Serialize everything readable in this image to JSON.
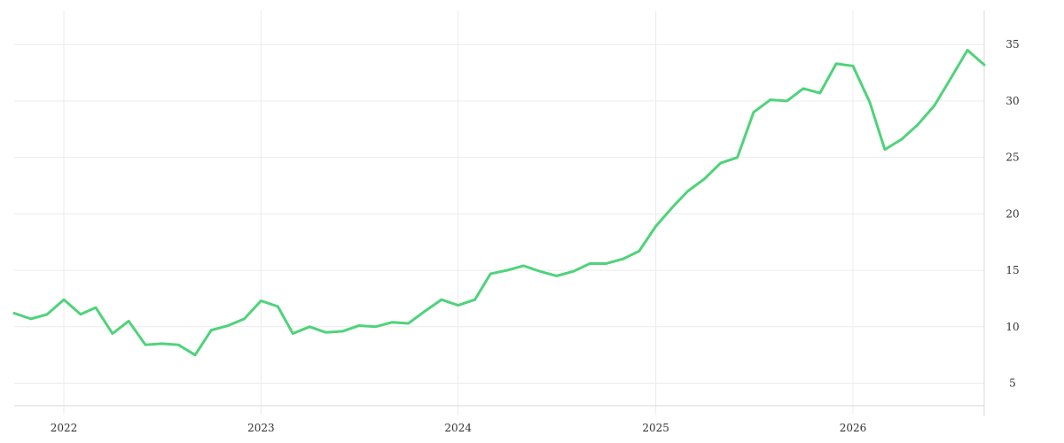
{
  "chart_data": {
    "type": "line",
    "title": "",
    "xlabel": "",
    "ylabel": "",
    "grid": true,
    "legend": "none",
    "y_axis_side": "right",
    "xlim": [
      "2021-10-01",
      "2026-09-01"
    ],
    "ylim": [
      3,
      38
    ],
    "x_ticks": [
      {
        "date": "2022-01-01",
        "label": "2022"
      },
      {
        "date": "2023-01-01",
        "label": "2023"
      },
      {
        "date": "2024-01-01",
        "label": "2024"
      },
      {
        "date": "2025-01-01",
        "label": "2025"
      },
      {
        "date": "2026-01-01",
        "label": "2026"
      }
    ],
    "y_ticks": [
      5,
      10,
      15,
      20,
      25,
      30,
      35
    ],
    "colors": {
      "line": "#4fd37a",
      "grid": "#ececec",
      "axis": "#d9d9d9",
      "text": "#333333"
    },
    "series": [
      {
        "x": [
          "2021-10-01",
          "2021-11-01",
          "2021-12-01",
          "2022-01-01",
          "2022-02-01",
          "2022-03-01",
          "2022-04-01",
          "2022-05-01",
          "2022-06-01",
          "2022-07-01",
          "2022-08-01",
          "2022-09-01",
          "2022-10-01",
          "2022-11-01",
          "2022-12-01",
          "2023-01-01",
          "2023-02-01",
          "2023-03-01",
          "2023-04-01",
          "2023-05-01",
          "2023-06-01",
          "2023-07-01",
          "2023-08-01",
          "2023-09-01",
          "2023-10-01",
          "2023-11-01",
          "2023-12-01",
          "2024-01-01",
          "2024-02-01",
          "2024-03-01",
          "2024-04-01",
          "2024-05-01",
          "2024-06-01",
          "2024-07-01",
          "2024-08-01",
          "2024-09-01",
          "2024-10-01",
          "2024-11-01",
          "2024-12-01",
          "2025-01-01",
          "2025-02-01",
          "2025-03-01",
          "2025-04-01",
          "2025-05-01",
          "2025-06-01",
          "2025-07-01",
          "2025-08-01",
          "2025-09-01",
          "2025-10-01",
          "2025-11-01",
          "2025-12-01",
          "2026-01-01",
          "2026-02-01",
          "2026-03-01",
          "2026-04-01",
          "2026-05-01",
          "2026-06-01",
          "2026-07-01",
          "2026-08-01",
          "2026-09-01"
        ],
        "values": [
          11.2,
          10.7,
          11.1,
          12.4,
          11.1,
          11.7,
          9.4,
          10.5,
          8.4,
          8.5,
          8.4,
          7.5,
          9.7,
          10.1,
          10.7,
          12.3,
          11.8,
          9.4,
          10.0,
          9.5,
          9.6,
          10.1,
          10.0,
          10.4,
          10.3,
          11.4,
          12.4,
          11.9,
          12.4,
          14.7,
          15.0,
          15.4,
          14.9,
          14.5,
          14.9,
          15.6,
          15.6,
          16.0,
          16.7,
          18.9,
          20.6,
          22.0,
          23.1,
          24.5,
          25.0,
          29.0,
          30.1,
          30.0,
          31.1,
          30.7,
          33.3,
          33.1,
          29.9,
          25.7,
          26.6,
          27.9,
          29.6,
          32.0,
          34.5,
          33.2
        ]
      }
    ]
  }
}
